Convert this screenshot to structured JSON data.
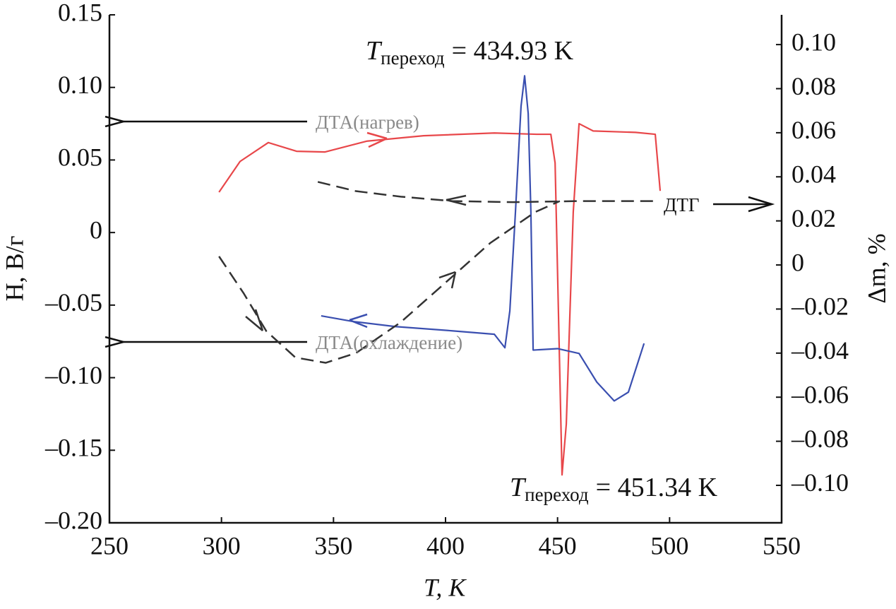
{
  "chart_data": {
    "type": "line",
    "xlabel": "T, K",
    "ylabel": "H, В/г",
    "y2label": "Δm, %",
    "xlim": [
      250,
      550
    ],
    "xticks": [
      250,
      300,
      350,
      400,
      450,
      500,
      550
    ],
    "ylim": [
      -0.2,
      0.15
    ],
    "yticks": [
      0.15,
      {
        "value": 0.1,
        "label": "0.10"
      },
      0.05,
      0,
      {
        "value": -0.05,
        "label": "–0.05"
      },
      {
        "value": -0.1,
        "label": "–0.10"
      },
      {
        "value": -0.15,
        "label": "–0.15"
      },
      {
        "value": -0.2,
        "label": "–0.20"
      }
    ],
    "y2lim": [
      -0.117,
      0.1135
    ],
    "y2ticks": [
      {
        "value": 0.1,
        "label": "0.10"
      },
      0.08,
      0.06,
      0.04,
      0.02,
      0,
      {
        "value": -0.02,
        "label": "–0.02"
      },
      {
        "value": -0.04,
        "label": "–0.04"
      },
      {
        "value": -0.06,
        "label": "–0.06"
      },
      {
        "value": -0.08,
        "label": "–0.08"
      },
      {
        "value": -0.1,
        "label": "–0.10"
      }
    ],
    "series": [
      {
        "name": "ДТА(нагрев)",
        "color": "#e8474a",
        "x": [
          298.9,
          308.3,
          320.9,
          333.5,
          346.1,
          365,
          390.2,
          421.8,
          440.7,
          447,
          448.9,
          450.1,
          452,
          453.9,
          457,
          459.6,
          465.9,
          484.8,
          493.6,
          495.8
        ],
        "values": [
          0.0278,
          0.049,
          0.062,
          0.056,
          0.0555,
          0.063,
          0.0667,
          0.0686,
          0.0677,
          0.0677,
          0.048,
          -0.0346,
          -0.167,
          -0.132,
          0.014,
          0.075,
          0.07,
          0.069,
          0.0677,
          0.0287
        ]
      },
      {
        "name": "ДТА(охлаждение)",
        "color": "#3a4fb0",
        "x": [
          344.5,
          358.7,
          377.6,
          402.9,
          421.8,
          426.5,
          428.7,
          431.2,
          433.7,
          435.3,
          436.9,
          438.1,
          439.1,
          450,
          459.6,
          467.5,
          475.3,
          481.6,
          488.6
        ],
        "values": [
          -0.0574,
          -0.0613,
          -0.0648,
          -0.0677,
          -0.0701,
          -0.0794,
          -0.054,
          0.014,
          0.087,
          0.108,
          0.082,
          0.014,
          -0.081,
          -0.08,
          -0.0833,
          -0.103,
          -0.116,
          -0.11,
          -0.0764
        ]
      },
      {
        "name": "ДТГ",
        "color": "#333333",
        "axis": "y2",
        "dashed": true,
        "x": [
          343,
          360,
          380,
          403,
          430,
          460,
          495
        ],
        "values": [
          0.0377,
          0.0335,
          0.031,
          0.029,
          0.0285,
          0.029,
          0.029
        ]
      },
      {
        "color": "#333333",
        "axis": "y2",
        "dashed": true,
        "x": [
          298.9,
          310,
          320,
          333,
          346.5,
          360,
          380,
          400,
          420,
          440,
          451
        ],
        "values": [
          0.0039,
          -0.013,
          -0.03,
          -0.042,
          -0.0444,
          -0.04,
          -0.026,
          -0.008,
          0.01,
          0.024,
          0.029
        ]
      }
    ],
    "annotations": [
      {
        "symbol": "T",
        "subscript": "переход",
        "text": "= 434.93 K"
      },
      {
        "symbol": "T",
        "subscript": "переход",
        "text": "= 451.34 K"
      }
    ]
  }
}
